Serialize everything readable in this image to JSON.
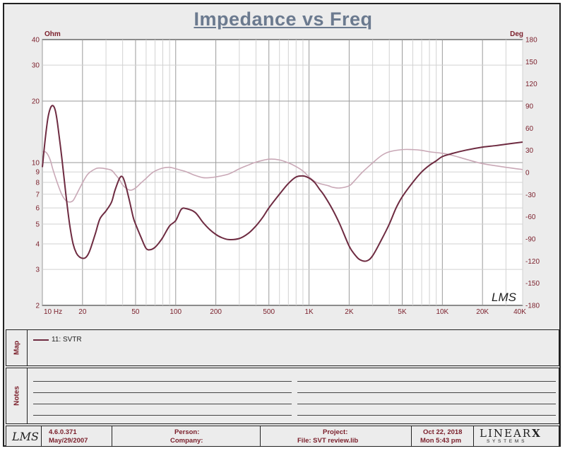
{
  "header": {
    "title": "Impedance vs Freq"
  },
  "chart_data": {
    "type": "line",
    "title": "Impedance vs Freq",
    "xscale": "log",
    "xlim": [
      10,
      40000
    ],
    "x_tick_labels": [
      "10 Hz",
      "20",
      "50",
      "100",
      "200",
      "500",
      "1K",
      "2K",
      "5K",
      "10K",
      "20K",
      "40K"
    ],
    "x_tick_values": [
      10,
      20,
      50,
      100,
      200,
      500,
      1000,
      2000,
      5000,
      10000,
      20000,
      40000
    ],
    "y_left": {
      "unit": "Ohm",
      "scale": "log",
      "lim": [
        2,
        40
      ],
      "tick_labels": [
        "40",
        "30",
        "20",
        "10",
        "9",
        "8",
        "7",
        "6",
        "5",
        "4",
        "3",
        "2"
      ],
      "tick_values": [
        40,
        30,
        20,
        10,
        9,
        8,
        7,
        6,
        5,
        4,
        3,
        2
      ]
    },
    "y_right": {
      "unit": "Deg",
      "scale": "linear",
      "lim": [
        -180,
        180
      ],
      "tick_labels": [
        "180",
        "150",
        "120",
        "90",
        "60",
        "30",
        "0",
        "-30",
        "-60",
        "-90",
        "-120",
        "-150",
        "-180"
      ],
      "tick_values": [
        180,
        150,
        120,
        90,
        60,
        30,
        0,
        -30,
        -60,
        -90,
        -120,
        -150,
        -180
      ]
    },
    "grid": true,
    "series": [
      {
        "name": "11: SVTR",
        "axis": "left",
        "color": "#6e2b41",
        "x": [
          10,
          10.5,
          11,
          11.5,
          12,
          12.5,
          13,
          14,
          15,
          16,
          17,
          18,
          19,
          20,
          21,
          22,
          23,
          25,
          27,
          30,
          33,
          35,
          38,
          40,
          42,
          45,
          48,
          50,
          55,
          60,
          65,
          70,
          75,
          80,
          90,
          100,
          110,
          120,
          140,
          160,
          180,
          200,
          220,
          250,
          300,
          350,
          400,
          450,
          500,
          600,
          700,
          800,
          900,
          1000,
          1100,
          1200,
          1300,
          1500,
          1700,
          2000,
          2200,
          2400,
          2700,
          3000,
          3500,
          4000,
          4500,
          5000,
          6000,
          7000,
          8000,
          9000,
          10000,
          12000,
          15000,
          20000,
          25000,
          30000,
          40000
        ],
        "y": [
          9.5,
          13,
          16.5,
          18.5,
          19,
          18,
          15.5,
          10.5,
          7,
          5,
          4,
          3.6,
          3.45,
          3.4,
          3.42,
          3.55,
          3.8,
          4.5,
          5.3,
          5.8,
          6.4,
          7.3,
          8.4,
          8.5,
          7.8,
          6.5,
          5.4,
          5.0,
          4.3,
          3.8,
          3.75,
          3.85,
          4.05,
          4.3,
          4.9,
          5.2,
          5.9,
          5.95,
          5.7,
          5.1,
          4.7,
          4.45,
          4.3,
          4.2,
          4.25,
          4.5,
          4.9,
          5.4,
          6.0,
          7.0,
          7.9,
          8.5,
          8.6,
          8.4,
          8.0,
          7.4,
          6.9,
          5.9,
          5.0,
          3.9,
          3.55,
          3.35,
          3.3,
          3.5,
          4.2,
          5.0,
          6.0,
          6.8,
          8.0,
          9.0,
          9.7,
          10.2,
          10.7,
          11.1,
          11.5,
          11.9,
          12.1,
          12.3,
          12.6
        ]
      },
      {
        "name": "",
        "axis": "right",
        "color": "#c9a8b6",
        "x": [
          10,
          10.5,
          11,
          11.5,
          12,
          13,
          14,
          15,
          16,
          17,
          18,
          20,
          22,
          25,
          27,
          30,
          33,
          35,
          38,
          40,
          43,
          46,
          50,
          55,
          60,
          65,
          70,
          80,
          90,
          100,
          110,
          120,
          140,
          160,
          180,
          200,
          250,
          300,
          350,
          400,
          500,
          600,
          700,
          800,
          900,
          1000,
          1100,
          1200,
          1400,
          1500,
          1700,
          2000,
          2200,
          2500,
          3000,
          3500,
          4000,
          5000,
          6000,
          7000,
          8000,
          10000,
          12000,
          15000,
          20000,
          30000,
          40000
        ],
        "y": [
          28,
          28,
          24,
          16,
          4,
          -15,
          -30,
          -38,
          -40,
          -38,
          -30,
          -14,
          -2,
          5,
          6,
          5,
          3,
          -2,
          -10,
          -17,
          -22,
          -24,
          -21,
          -14,
          -8,
          -2,
          2,
          6,
          7,
          5,
          3,
          1,
          -4,
          -7,
          -7,
          -6,
          -2,
          5,
          10,
          14,
          18,
          17,
          13,
          8,
          2,
          -6,
          -12,
          -15,
          -18,
          -20,
          -21,
          -18,
          -11,
          0,
          13,
          23,
          28,
          31,
          31,
          30,
          28,
          26,
          23,
          18,
          12,
          7,
          4
        ]
      }
    ]
  },
  "watermark": "LMS",
  "map": {
    "label": "Map",
    "legend": [
      {
        "label": "11: SVTR",
        "color": "#6e2b41"
      }
    ]
  },
  "notes": {
    "label": "Notes"
  },
  "footer": {
    "logo": "LMS",
    "version": "4.6.0.371",
    "version_date": "May/29/2007",
    "person_label": "Person:",
    "company_label": "Company:",
    "project_label": "Project:",
    "file_label": "File: SVT review.lib",
    "date": "Oct 22, 2018",
    "time": "Mon  5:43 pm",
    "brand_top": "LINEAR",
    "brand_x": "X",
    "brand_bottom": "S Y S T E M S"
  }
}
